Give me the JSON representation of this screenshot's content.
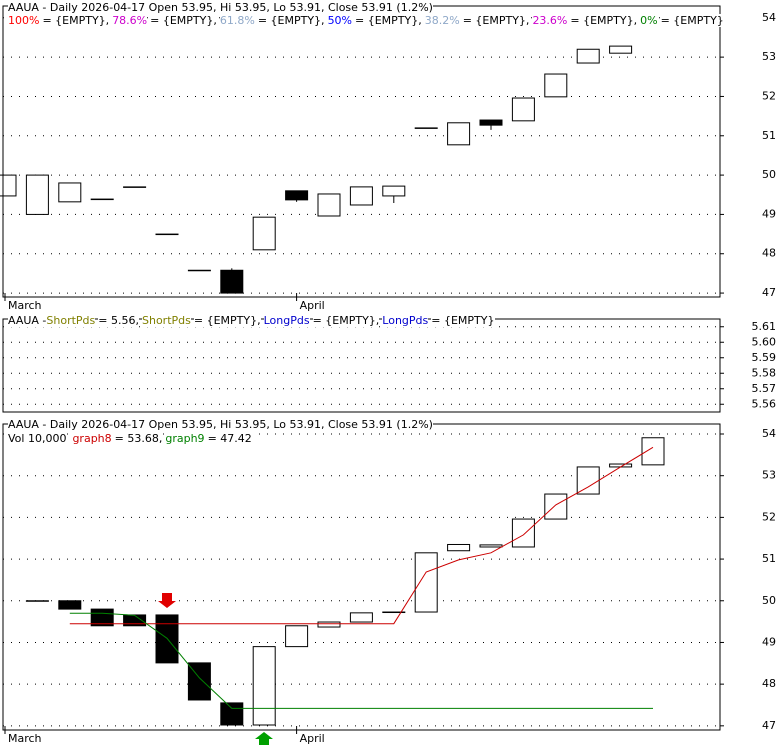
{
  "chart_data": [
    {
      "type": "candlestick",
      "title": "AAUA - Daily 2026-04-17 Open 53.95, Hi 53.95, Lo 53.91, Close 53.91 (1.2%)",
      "legend": [
        {
          "name": "100%",
          "text": "= {EMPTY},",
          "color": "#ff0000"
        },
        {
          "name": "78.6%",
          "text": "= {EMPTY},",
          "color": "#cc00cc"
        },
        {
          "name": "61.8%",
          "text": "= {EMPTY},",
          "color": "#8fa8c8"
        },
        {
          "name": "50%",
          "text": "= {EMPTY},",
          "color": "#0000ff"
        },
        {
          "name": "38.2%",
          "text": "= {EMPTY},",
          "color": "#8fa8c8"
        },
        {
          "name": "23.6%",
          "text": "= {EMPTY},",
          "color": "#cc00cc"
        },
        {
          "name": "0%",
          "text": "= {EMPTY}",
          "color": "#008000"
        }
      ],
      "categories": [
        "March",
        null,
        null,
        null,
        null,
        null,
        null,
        null,
        null,
        "April",
        null,
        null,
        null,
        null,
        null,
        null,
        null,
        null,
        null,
        null
      ],
      "open": [
        49.47,
        49.0,
        49.32,
        49.39,
        49.7,
        48.5,
        47.58,
        47.58,
        48.1,
        49.6,
        48.96,
        49.24,
        49.47,
        51.2,
        50.77,
        51.4,
        51.38,
        51.99,
        52.85,
        53.1
      ],
      "high": [
        50.0,
        50.0,
        49.8,
        49.39,
        49.7,
        48.5,
        47.58,
        47.63,
        48.93,
        49.6,
        49.52,
        49.7,
        49.72,
        51.2,
        51.33,
        51.4,
        51.96,
        52.57,
        53.2,
        53.28
      ],
      "low": [
        49.47,
        49.0,
        49.32,
        49.39,
        49.7,
        48.5,
        47.58,
        47.0,
        48.1,
        49.32,
        48.96,
        49.24,
        49.29,
        51.2,
        50.77,
        51.15,
        51.38,
        51.99,
        52.85,
        53.1
      ],
      "close": [
        50.0,
        50.0,
        49.8,
        49.39,
        49.7,
        48.5,
        47.58,
        47.0,
        48.93,
        49.37,
        49.52,
        49.7,
        49.72,
        51.2,
        51.33,
        51.27,
        51.96,
        52.57,
        53.2,
        53.28
      ],
      "ylim": [
        46.9,
        54.3
      ],
      "yticks": [
        47,
        48,
        49,
        50,
        51,
        52,
        53,
        54
      ],
      "grid": true
    },
    {
      "type": "indicator",
      "title": "AAUA -",
      "legend": [
        {
          "name": "ShortPds",
          "text": "= 5.56,",
          "color": "#808000"
        },
        {
          "name": "ShortPds",
          "text": "= {EMPTY},",
          "color": "#808000"
        },
        {
          "name": "LongPds",
          "text": "= {EMPTY},",
          "color": "#0000cc"
        },
        {
          "name": "LongPds",
          "text": "= {EMPTY}",
          "color": "#0000cc"
        }
      ],
      "ylim": [
        5.555,
        5.615
      ],
      "yticks": [
        5.56,
        5.57,
        5.58,
        5.59,
        {
          "value": 5.6,
          "label": "5.60"
        },
        5.61
      ],
      "grid": true
    },
    {
      "type": "candlestick",
      "title": "AAUA - Daily 2026-04-17 Open 53.95, Hi 53.95, Lo 53.91, Close 53.91 (1.2%)",
      "legend": [
        {
          "name": "Vol 10,000",
          "text": "",
          "color": "#000000"
        },
        {
          "name": "graph8",
          "text": "= 53.68,",
          "color": "#cc0000"
        },
        {
          "name": "graph9",
          "text": "= 47.42",
          "color": "#008000"
        }
      ],
      "categories": [
        "March",
        null,
        null,
        null,
        null,
        null,
        null,
        null,
        null,
        "April",
        null,
        null,
        null,
        null,
        null,
        null,
        null,
        null,
        null,
        null,
        null
      ],
      "open": [
        null,
        50.0,
        50.0,
        49.8,
        49.66,
        49.66,
        48.51,
        47.55,
        47.02,
        48.9,
        49.37,
        49.49,
        49.73,
        49.73,
        51.2,
        51.29,
        51.29,
        51.96,
        52.56,
        53.21,
        53.26
      ],
      "high": [
        null,
        50.0,
        50.0,
        49.8,
        49.66,
        49.66,
        48.51,
        47.55,
        48.9,
        49.4,
        49.49,
        49.71,
        49.73,
        51.15,
        51.35,
        51.34,
        51.96,
        52.56,
        53.21,
        53.28,
        53.91
      ],
      "low": [
        null,
        50.0,
        49.8,
        49.4,
        49.4,
        48.51,
        47.62,
        47.02,
        47.02,
        48.9,
        49.37,
        49.49,
        49.73,
        49.73,
        51.2,
        51.29,
        51.29,
        51.96,
        52.56,
        53.21,
        53.26
      ],
      "close": [
        null,
        50.0,
        49.8,
        49.4,
        49.4,
        48.51,
        47.62,
        47.02,
        48.9,
        49.4,
        49.49,
        49.71,
        49.73,
        51.15,
        51.35,
        51.34,
        51.96,
        52.56,
        53.21,
        53.28,
        53.91
      ],
      "series": [
        {
          "name": "graph8",
          "color": "#cc0000",
          "values": [
            null,
            null,
            49.45,
            49.45,
            49.45,
            49.45,
            49.45,
            49.45,
            49.45,
            49.45,
            49.45,
            49.45,
            49.45,
            50.69,
            50.98,
            51.15,
            51.58,
            52.3,
            52.73,
            53.21,
            53.68
          ]
        },
        {
          "name": "graph9",
          "color": "#008000",
          "values": [
            null,
            null,
            49.7,
            49.7,
            49.65,
            49.1,
            48.15,
            47.42,
            47.42,
            47.42,
            47.42,
            47.42,
            47.42,
            47.42,
            47.42,
            47.42,
            47.42,
            47.42,
            47.42,
            47.42,
            47.42
          ]
        }
      ],
      "ylim": [
        46.9,
        54.24
      ],
      "yticks": [
        47,
        48,
        49,
        50,
        51,
        52,
        53,
        54
      ],
      "grid": true
    }
  ]
}
